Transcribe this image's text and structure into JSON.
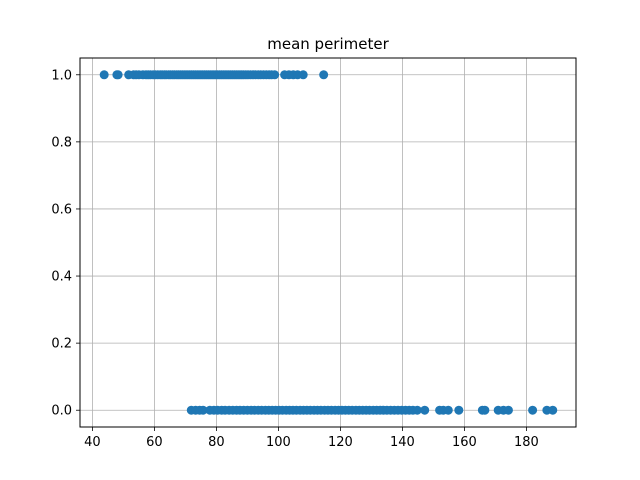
{
  "chart_data": {
    "type": "scatter",
    "title": "mean perimeter",
    "xlabel": "",
    "ylabel": "",
    "xlim": [
      36,
      196
    ],
    "ylim": [
      -0.05,
      1.05
    ],
    "x_ticks": [
      40,
      60,
      80,
      100,
      120,
      140,
      160,
      180
    ],
    "x_tick_labels": [
      "40",
      "60",
      "80",
      "100",
      "120",
      "140",
      "160",
      "180"
    ],
    "y_ticks": [
      0.0,
      0.2,
      0.4,
      0.6,
      0.8,
      1.0
    ],
    "y_tick_labels": [
      "0.0",
      "0.2",
      "0.4",
      "0.6",
      "0.8",
      "1.0"
    ],
    "grid": true,
    "color": "#1f77b4",
    "series": [
      {
        "y": 1,
        "x": [
          43.8,
          47.9,
          48.3,
          51.7,
          53.3,
          54.1,
          55.0,
          56.3,
          57.3,
          58.0,
          58.7,
          59.6,
          60.3,
          61.1,
          61.9,
          62.5,
          63.2,
          63.8,
          64.6,
          65.2,
          65.9,
          66.5,
          67.2,
          67.8,
          68.4,
          69.0,
          69.6,
          70.2,
          70.8,
          71.4,
          72.0,
          72.6,
          73.2,
          73.8,
          74.4,
          75.0,
          75.6,
          76.2,
          76.8,
          77.4,
          78.0,
          78.6,
          79.2,
          79.8,
          80.4,
          81.0,
          81.6,
          82.2,
          82.8,
          83.4,
          84.0,
          84.6,
          85.2,
          85.8,
          86.4,
          87.0,
          87.6,
          88.2,
          88.8,
          89.5,
          90.2,
          91.0,
          91.8,
          92.6,
          93.5,
          94.3,
          95.2,
          96.1,
          97.0,
          97.8,
          98.8,
          102.0,
          103.4,
          104.8,
          106.2,
          108.0,
          114.6
        ]
      },
      {
        "y": 0,
        "x": [
          71.9,
          73.3,
          74.6,
          75.7,
          77.9,
          79.2,
          80.4,
          81.7,
          82.8,
          84.1,
          85.3,
          86.5,
          87.6,
          88.8,
          90.0,
          91.2,
          92.3,
          93.5,
          94.6,
          95.8,
          96.9,
          98.0,
          99.1,
          100.2,
          101.3,
          102.5,
          103.6,
          104.7,
          105.8,
          107.0,
          108.1,
          109.2,
          110.3,
          111.5,
          112.6,
          113.7,
          114.9,
          116.0,
          117.1,
          118.3,
          119.4,
          120.5,
          121.6,
          122.7,
          123.8,
          125.0,
          126.1,
          127.2,
          128.3,
          129.4,
          130.6,
          131.7,
          132.8,
          133.9,
          135.0,
          136.2,
          137.4,
          138.6,
          139.8,
          141.0,
          142.2,
          143.4,
          144.8,
          147.2,
          152.0,
          153.2,
          154.8,
          158.2,
          165.8,
          166.6,
          170.9,
          172.6,
          174.2,
          182.0,
          186.6,
          188.5
        ]
      }
    ]
  }
}
